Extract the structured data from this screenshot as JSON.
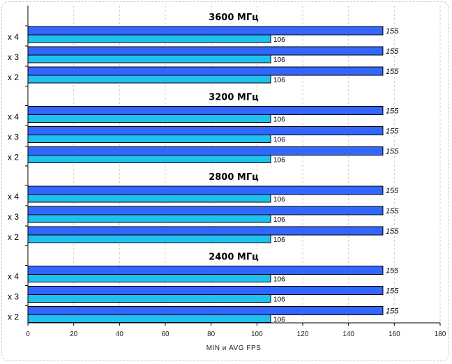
{
  "chart_data": {
    "type": "bar",
    "orientation": "horizontal",
    "xlabel": "MIN и AVG FPS",
    "xlim": [
      0,
      180
    ],
    "xticks": [
      0,
      20,
      40,
      60,
      80,
      100,
      120,
      140,
      160,
      180
    ],
    "grid": "vertical dashed",
    "colors": {
      "avg": "#3366ff",
      "min": "#1ec0f0",
      "grid": "#e8c8a8"
    },
    "groups": [
      {
        "title": "3600 МГц",
        "rows": [
          {
            "label": "x 4",
            "avg": 155,
            "min": 106
          },
          {
            "label": "x 3",
            "avg": 155,
            "min": 106
          },
          {
            "label": "x 2",
            "avg": 155,
            "min": 106
          }
        ]
      },
      {
        "title": "3200 МГц",
        "rows": [
          {
            "label": "x 4",
            "avg": 155,
            "min": 106
          },
          {
            "label": "x 3",
            "avg": 155,
            "min": 106
          },
          {
            "label": "x 2",
            "avg": 155,
            "min": 106
          }
        ]
      },
      {
        "title": "2800 МГц",
        "rows": [
          {
            "label": "x 4",
            "avg": 155,
            "min": 106
          },
          {
            "label": "x 3",
            "avg": 155,
            "min": 106
          },
          {
            "label": "x 2",
            "avg": 155,
            "min": 106
          }
        ]
      },
      {
        "title": "2400 МГц",
        "rows": [
          {
            "label": "x 4",
            "avg": 155,
            "min": 106
          },
          {
            "label": "x 3",
            "avg": 155,
            "min": 106
          },
          {
            "label": "x 2",
            "avg": 155,
            "min": 106
          }
        ]
      }
    ]
  }
}
